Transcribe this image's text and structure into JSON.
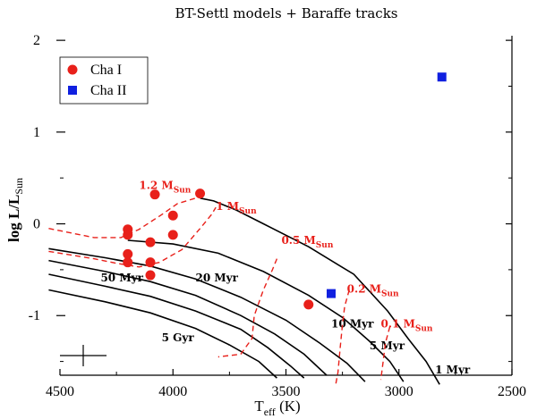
{
  "chart_data": {
    "type": "scatter",
    "title": "BT-Settl models + Baraffe tracks",
    "xlabel": "T",
    "xlabel_sub": "eff",
    "xlabel_unit": " (K)",
    "ylabel_main": "log L/L",
    "ylabel_sub": "Sun",
    "xlim": [
      4500,
      2500
    ],
    "ylim": [
      -1.65,
      2.05
    ],
    "x_reversed": true,
    "xticks": [
      4500,
      4000,
      3500,
      3000,
      2500
    ],
    "xtick_labels": [
      "4500",
      "4000",
      "3500",
      "3000",
      "2500"
    ],
    "yticks": [
      -1,
      0,
      1,
      2
    ],
    "ytick_labels": [
      "-1",
      "0",
      "1",
      "2"
    ],
    "grid": false,
    "legend_position": "top-left",
    "series": [
      {
        "name": "Cha I",
        "marker": "circle",
        "color": "#e8201a",
        "points": [
          [
            4080,
            0.32
          ],
          [
            3880,
            0.33
          ],
          [
            4000,
            0.09
          ],
          [
            4200,
            -0.06
          ],
          [
            4200,
            -0.12
          ],
          [
            4000,
            -0.12
          ],
          [
            4100,
            -0.2
          ],
          [
            4200,
            -0.33
          ],
          [
            4200,
            -0.42
          ],
          [
            4100,
            -0.42
          ],
          [
            4100,
            -0.56
          ],
          [
            3400,
            -0.88
          ]
        ]
      },
      {
        "name": "Cha II",
        "marker": "square",
        "color": "#1020e0",
        "points": [
          [
            2810,
            1.6
          ],
          [
            3300,
            -0.76
          ]
        ]
      }
    ],
    "isochrones": [
      {
        "label": "1 Myr",
        "label_at": [
          2840,
          -1.63
        ],
        "points": [
          [
            3880,
            0.28
          ],
          [
            3820,
            0.25
          ],
          [
            3720,
            0.15
          ],
          [
            3600,
            0.0
          ],
          [
            3400,
            -0.25
          ],
          [
            3200,
            -0.55
          ],
          [
            3050,
            -0.95
          ],
          [
            2960,
            -1.25
          ],
          [
            2880,
            -1.5
          ],
          [
            2820,
            -1.75
          ]
        ]
      },
      {
        "label": "5 Myr",
        "label_at": [
          3130,
          -1.37
        ],
        "points": [
          [
            4200,
            -0.18
          ],
          [
            4000,
            -0.22
          ],
          [
            3800,
            -0.32
          ],
          [
            3600,
            -0.52
          ],
          [
            3400,
            -0.78
          ],
          [
            3250,
            -1.02
          ],
          [
            3130,
            -1.28
          ],
          [
            3040,
            -1.5
          ],
          [
            2980,
            -1.72
          ]
        ]
      },
      {
        "label": "10 Myr",
        "label_at": [
          3300,
          -1.13
        ],
        "points": [
          [
            4550,
            -0.27
          ],
          [
            4300,
            -0.37
          ],
          [
            4100,
            -0.46
          ],
          [
            3900,
            -0.6
          ],
          [
            3700,
            -0.8
          ],
          [
            3500,
            -1.05
          ],
          [
            3350,
            -1.3
          ],
          [
            3230,
            -1.52
          ],
          [
            3150,
            -1.72
          ]
        ]
      },
      {
        "label": "20 Myr",
        "label_at": [
          3900,
          -0.63
        ],
        "points": [
          [
            4550,
            -0.4
          ],
          [
            4300,
            -0.52
          ],
          [
            4100,
            -0.63
          ],
          [
            3900,
            -0.78
          ],
          [
            3700,
            -1.0
          ],
          [
            3550,
            -1.2
          ],
          [
            3420,
            -1.42
          ],
          [
            3320,
            -1.65
          ]
        ]
      },
      {
        "label": "50 Myr",
        "label_at": [
          4320,
          -0.63
        ],
        "points": [
          [
            4550,
            -0.55
          ],
          [
            4300,
            -0.68
          ],
          [
            4100,
            -0.79
          ],
          [
            3900,
            -0.95
          ],
          [
            3700,
            -1.15
          ],
          [
            3580,
            -1.35
          ],
          [
            3480,
            -1.55
          ],
          [
            3420,
            -1.68
          ]
        ]
      },
      {
        "label": "5 Gyr",
        "label_at": [
          4050,
          -1.28
        ],
        "points": [
          [
            4550,
            -0.72
          ],
          [
            4300,
            -0.85
          ],
          [
            4100,
            -0.97
          ],
          [
            3900,
            -1.14
          ],
          [
            3750,
            -1.32
          ],
          [
            3620,
            -1.5
          ],
          [
            3540,
            -1.68
          ]
        ]
      }
    ],
    "mass_tracks": [
      {
        "label": "1.2 M",
        "label_sub": "Sun",
        "label_at": [
          4150,
          0.38
        ],
        "points": [
          [
            4550,
            -0.05
          ],
          [
            4350,
            -0.15
          ],
          [
            4230,
            -0.15
          ],
          [
            4150,
            -0.06
          ],
          [
            4050,
            0.1
          ],
          [
            3980,
            0.22
          ],
          [
            3900,
            0.28
          ]
        ]
      },
      {
        "label": "1 M",
        "label_sub": "Sun",
        "label_at": [
          3810,
          0.15
        ],
        "points": [
          [
            4550,
            -0.3
          ],
          [
            4350,
            -0.38
          ],
          [
            4250,
            -0.43
          ],
          [
            4150,
            -0.47
          ],
          [
            4060,
            -0.42
          ],
          [
            3960,
            -0.28
          ],
          [
            3880,
            -0.05
          ],
          [
            3830,
            0.1
          ],
          [
            3810,
            0.18
          ]
        ]
      },
      {
        "label": "0.5 M",
        "label_sub": "Sun",
        "label_at": [
          3520,
          -0.22
        ],
        "points": [
          [
            3540,
            -0.38
          ],
          [
            3560,
            -0.5
          ],
          [
            3600,
            -0.72
          ],
          [
            3640,
            -1.0
          ],
          [
            3650,
            -1.25
          ],
          [
            3700,
            -1.42
          ],
          [
            3800,
            -1.45
          ]
        ]
      },
      {
        "label": "0.2 M",
        "label_sub": "Sun",
        "label_at": [
          3230,
          -0.75
        ],
        "points": [
          [
            3220,
            -0.72
          ],
          [
            3240,
            -0.9
          ],
          [
            3250,
            -1.1
          ],
          [
            3260,
            -1.35
          ],
          [
            3270,
            -1.62
          ],
          [
            3280,
            -1.75
          ]
        ]
      },
      {
        "label": "0.1 M",
        "label_sub": "Sun",
        "label_at": [
          3080,
          -1.13
        ],
        "points": [
          [
            3040,
            -1.12
          ],
          [
            3060,
            -1.3
          ],
          [
            3070,
            -1.5
          ],
          [
            3080,
            -1.7
          ]
        ]
      }
    ]
  }
}
